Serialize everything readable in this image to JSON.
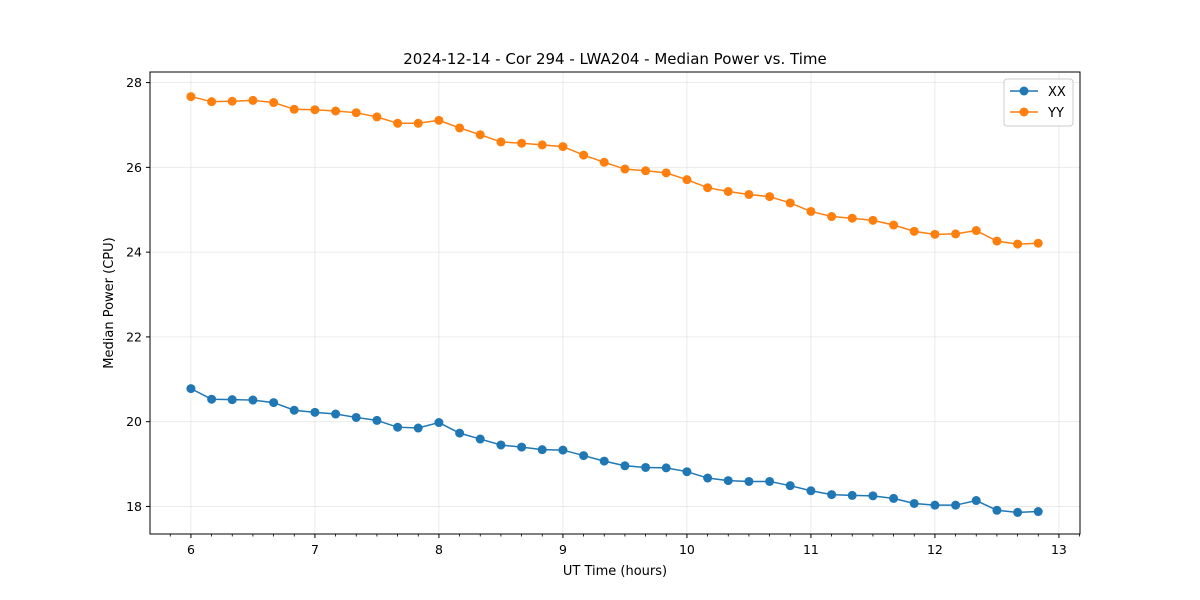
{
  "chart_data": {
    "type": "line",
    "title": "2024-12-14 - Cor 294 - LWA204 - Median Power vs. Time",
    "xlabel": "UT Time (hours)",
    "ylabel": "Median Power (CPU)",
    "xlim": [
      5.67,
      13.17
    ],
    "ylim": [
      17.35,
      28.25
    ],
    "xticks": [
      6,
      7,
      8,
      9,
      10,
      11,
      12,
      13
    ],
    "yticks": [
      18,
      20,
      22,
      24,
      26,
      28
    ],
    "grid": true,
    "legend_position": "top-right",
    "x": [
      6.0,
      6.167,
      6.333,
      6.5,
      6.667,
      6.833,
      7.0,
      7.167,
      7.333,
      7.5,
      7.667,
      7.833,
      8.0,
      8.167,
      8.333,
      8.5,
      8.667,
      8.833,
      9.0,
      9.167,
      9.333,
      9.5,
      9.667,
      9.833,
      10.0,
      10.167,
      10.333,
      10.5,
      10.667,
      10.833,
      11.0,
      11.167,
      11.333,
      11.5,
      11.667,
      11.833,
      12.0,
      12.167,
      12.333,
      12.5,
      12.667,
      12.833
    ],
    "series": [
      {
        "name": "XX",
        "color": "#1f77b4",
        "values": [
          20.78,
          20.53,
          20.52,
          20.51,
          20.45,
          20.27,
          20.22,
          20.18,
          20.1,
          20.03,
          19.87,
          19.85,
          19.98,
          19.73,
          19.59,
          19.45,
          19.4,
          19.34,
          19.33,
          19.2,
          19.07,
          18.96,
          18.92,
          18.91,
          18.82,
          18.67,
          18.61,
          18.59,
          18.59,
          18.49,
          18.37,
          18.28,
          18.26,
          18.25,
          18.19,
          18.07,
          18.03,
          18.03,
          18.14,
          17.91,
          17.86,
          17.88
        ]
      },
      {
        "name": "YY",
        "color": "#ff7f0e",
        "values": [
          27.67,
          27.55,
          27.56,
          27.58,
          27.53,
          27.37,
          27.36,
          27.33,
          27.29,
          27.19,
          27.04,
          27.04,
          27.11,
          26.93,
          26.77,
          26.6,
          26.57,
          26.53,
          26.49,
          26.29,
          26.12,
          25.96,
          25.92,
          25.87,
          25.71,
          25.52,
          25.43,
          25.36,
          25.31,
          25.16,
          24.96,
          24.84,
          24.8,
          24.75,
          24.64,
          24.49,
          24.42,
          24.43,
          24.51,
          24.26,
          24.19,
          24.21
        ]
      }
    ]
  }
}
